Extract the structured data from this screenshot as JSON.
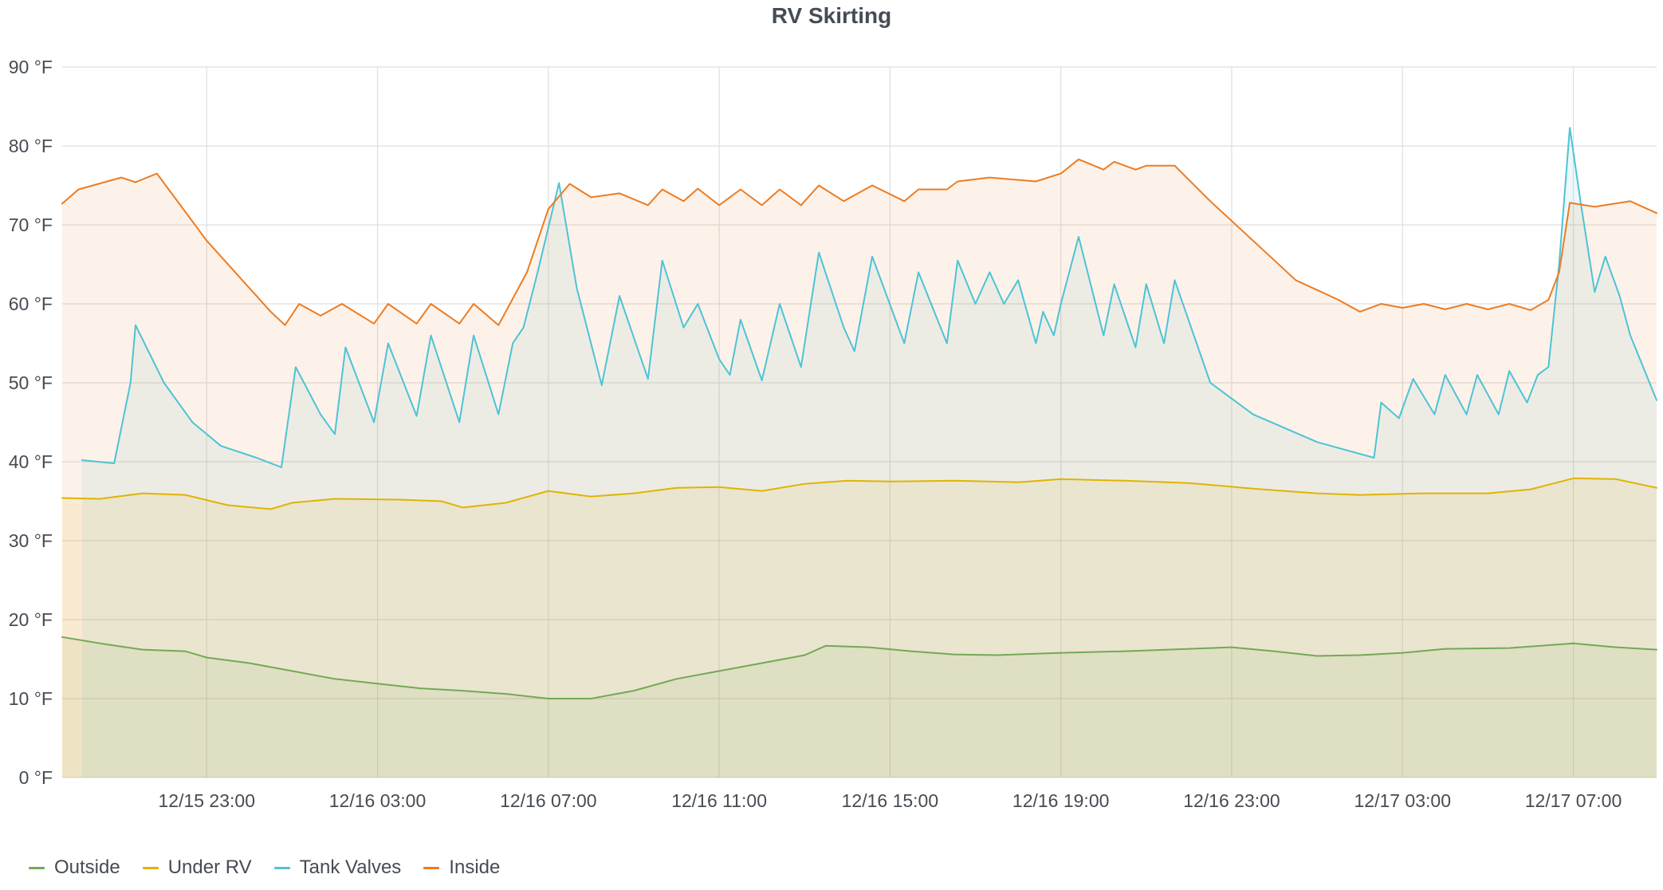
{
  "chart_data": {
    "type": "area",
    "title": "RV Skirting",
    "xlabel": "",
    "ylabel": "",
    "xlim": [
      "12/15 19:37",
      "12/17 08:57"
    ],
    "ylim": [
      0,
      90
    ],
    "y_unit": "°F",
    "yticks": [
      0,
      10,
      20,
      30,
      40,
      50,
      60,
      70,
      80,
      90
    ],
    "ytick_labels": [
      "0 °F",
      "10 °F",
      "20 °F",
      "30 °F",
      "40 °F",
      "50 °F",
      "60 °F",
      "70 °F",
      "80 °F",
      "90 °F"
    ],
    "xticks": [
      "12/15 23:00",
      "12/16 03:00",
      "12/16 07:00",
      "12/16 11:00",
      "12/16 15:00",
      "12/16 19:00",
      "12/16 23:00",
      "12/17 03:00",
      "12/17 07:00"
    ],
    "grid": true,
    "legend_position": "bottom-left",
    "series": [
      {
        "name": "Outside",
        "color": "#73a955",
        "points": [
          [
            "12/15 19:37",
            17.8
          ],
          [
            "12/15 20:30",
            17.0
          ],
          [
            "12/15 21:30",
            16.2
          ],
          [
            "12/15 22:30",
            16.0
          ],
          [
            "12/15 23:00",
            15.2
          ],
          [
            "12/16 00:00",
            14.5
          ],
          [
            "12/16 01:00",
            13.5
          ],
          [
            "12/16 02:00",
            12.5
          ],
          [
            "12/16 03:00",
            11.9
          ],
          [
            "12/16 04:00",
            11.3
          ],
          [
            "12/16 05:00",
            11.0
          ],
          [
            "12/16 06:00",
            10.6
          ],
          [
            "12/16 07:00",
            10.0
          ],
          [
            "12/16 08:00",
            10.0
          ],
          [
            "12/16 09:00",
            11.0
          ],
          [
            "12/16 10:00",
            12.5
          ],
          [
            "12/16 11:00",
            13.5
          ],
          [
            "12/16 12:00",
            14.5
          ],
          [
            "12/16 13:00",
            15.5
          ],
          [
            "12/16 13:30",
            16.7
          ],
          [
            "12/16 14:30",
            16.5
          ],
          [
            "12/16 15:30",
            16.0
          ],
          [
            "12/16 16:30",
            15.6
          ],
          [
            "12/16 17:30",
            15.5
          ],
          [
            "12/16 19:00",
            15.8
          ],
          [
            "12/16 20:30",
            16.0
          ],
          [
            "12/16 22:00",
            16.3
          ],
          [
            "12/16 23:00",
            16.5
          ],
          [
            "12/17 00:00",
            16.0
          ],
          [
            "12/17 01:00",
            15.4
          ],
          [
            "12/17 02:00",
            15.5
          ],
          [
            "12/17 03:00",
            15.8
          ],
          [
            "12/17 04:00",
            16.3
          ],
          [
            "12/17 05:30",
            16.4
          ],
          [
            "12/17 07:00",
            17.0
          ],
          [
            "12/17 08:00",
            16.5
          ],
          [
            "12/17 08:57",
            16.2
          ]
        ]
      },
      {
        "name": "Under RV",
        "color": "#e0b400",
        "points": [
          [
            "12/15 19:37",
            35.4
          ],
          [
            "12/15 20:30",
            35.3
          ],
          [
            "12/15 21:30",
            36.0
          ],
          [
            "12/15 22:30",
            35.8
          ],
          [
            "12/15 23:30",
            34.5
          ],
          [
            "12/16 00:30",
            34.0
          ],
          [
            "12/16 01:00",
            34.8
          ],
          [
            "12/16 02:00",
            35.3
          ],
          [
            "12/16 03:30",
            35.2
          ],
          [
            "12/16 04:30",
            35.0
          ],
          [
            "12/16 05:00",
            34.2
          ],
          [
            "12/16 06:00",
            34.8
          ],
          [
            "12/16 07:00",
            36.3
          ],
          [
            "12/16 08:00",
            35.6
          ],
          [
            "12/16 09:00",
            36.0
          ],
          [
            "12/16 10:00",
            36.7
          ],
          [
            "12/16 11:00",
            36.8
          ],
          [
            "12/16 12:00",
            36.3
          ],
          [
            "12/16 13:00",
            37.2
          ],
          [
            "12/16 14:00",
            37.6
          ],
          [
            "12/16 15:00",
            37.5
          ],
          [
            "12/16 16:30",
            37.6
          ],
          [
            "12/16 18:00",
            37.4
          ],
          [
            "12/16 19:00",
            37.8
          ],
          [
            "12/16 20:30",
            37.6
          ],
          [
            "12/16 22:00",
            37.3
          ],
          [
            "12/16 23:30",
            36.6
          ],
          [
            "12/17 01:00",
            36.0
          ],
          [
            "12/17 02:00",
            35.8
          ],
          [
            "12/17 03:30",
            36.0
          ],
          [
            "12/17 05:00",
            36.0
          ],
          [
            "12/17 06:00",
            36.5
          ],
          [
            "12/17 07:00",
            37.9
          ],
          [
            "12/17 08:00",
            37.8
          ],
          [
            "12/17 08:57",
            36.7
          ]
        ]
      },
      {
        "name": "Tank Valves",
        "color": "#4dc3d6",
        "points": [
          [
            "12/15 20:05",
            40.2
          ],
          [
            "12/15 20:50",
            39.8
          ],
          [
            "12/15 21:13",
            50.0
          ],
          [
            "12/15 21:20",
            57.3
          ],
          [
            "12/15 22:00",
            50.0
          ],
          [
            "12/15 22:40",
            45.0
          ],
          [
            "12/15 23:20",
            42.0
          ],
          [
            "12/16 00:10",
            40.5
          ],
          [
            "12/16 00:45",
            39.3
          ],
          [
            "12/16 01:05",
            52.0
          ],
          [
            "12/16 01:40",
            46.0
          ],
          [
            "12/16 02:00",
            43.5
          ],
          [
            "12/16 02:15",
            54.5
          ],
          [
            "12/16 02:55",
            45.0
          ],
          [
            "12/16 03:15",
            55.0
          ],
          [
            "12/16 03:55",
            45.8
          ],
          [
            "12/16 04:15",
            56.0
          ],
          [
            "12/16 04:55",
            45.0
          ],
          [
            "12/16 05:15",
            56.0
          ],
          [
            "12/16 05:50",
            46.0
          ],
          [
            "12/16 06:10",
            55.0
          ],
          [
            "12/16 06:25",
            57.0
          ],
          [
            "12/16 06:45",
            64.0
          ],
          [
            "12/16 07:15",
            75.3
          ],
          [
            "12/16 07:40",
            62.0
          ],
          [
            "12/16 08:15",
            49.7
          ],
          [
            "12/16 08:40",
            61.0
          ],
          [
            "12/16 09:20",
            50.5
          ],
          [
            "12/16 09:40",
            65.5
          ],
          [
            "12/16 10:10",
            57.0
          ],
          [
            "12/16 10:30",
            60.0
          ],
          [
            "12/16 11:00",
            53.0
          ],
          [
            "12/16 11:15",
            51.0
          ],
          [
            "12/16 11:30",
            58.0
          ],
          [
            "12/16 12:00",
            50.3
          ],
          [
            "12/16 12:25",
            60.0
          ],
          [
            "12/16 12:55",
            52.0
          ],
          [
            "12/16 13:20",
            66.5
          ],
          [
            "12/16 13:55",
            57.0
          ],
          [
            "12/16 14:10",
            54.0
          ],
          [
            "12/16 14:35",
            66.0
          ],
          [
            "12/16 15:20",
            55.0
          ],
          [
            "12/16 15:40",
            64.0
          ],
          [
            "12/16 16:20",
            55.0
          ],
          [
            "12/16 16:35",
            65.5
          ],
          [
            "12/16 17:00",
            60.0
          ],
          [
            "12/16 17:20",
            64.0
          ],
          [
            "12/16 17:40",
            60.0
          ],
          [
            "12/16 18:00",
            63.0
          ],
          [
            "12/16 18:25",
            55.0
          ],
          [
            "12/16 18:35",
            59.0
          ],
          [
            "12/16 18:50",
            56.0
          ],
          [
            "12/16 19:00",
            60.0
          ],
          [
            "12/16 19:25",
            68.5
          ],
          [
            "12/16 20:00",
            56.0
          ],
          [
            "12/16 20:15",
            62.5
          ],
          [
            "12/16 20:45",
            54.5
          ],
          [
            "12/16 21:00",
            62.5
          ],
          [
            "12/16 21:25",
            55.0
          ],
          [
            "12/16 21:40",
            63.0
          ],
          [
            "12/16 22:30",
            50.0
          ],
          [
            "12/16 23:30",
            46.0
          ],
          [
            "12/17 01:00",
            42.5
          ],
          [
            "12/17 02:00",
            41.0
          ],
          [
            "12/17 02:20",
            40.5
          ],
          [
            "12/17 02:30",
            47.5
          ],
          [
            "12/17 02:55",
            45.5
          ],
          [
            "12/17 03:15",
            50.5
          ],
          [
            "12/17 03:45",
            46.0
          ],
          [
            "12/17 04:00",
            51.0
          ],
          [
            "12/17 04:30",
            46.0
          ],
          [
            "12/17 04:45",
            51.0
          ],
          [
            "12/17 05:15",
            46.0
          ],
          [
            "12/17 05:30",
            51.5
          ],
          [
            "12/17 05:55",
            47.5
          ],
          [
            "12/17 06:10",
            51.0
          ],
          [
            "12/17 06:25",
            52.0
          ],
          [
            "12/17 06:40",
            65.0
          ],
          [
            "12/17 06:55",
            82.3
          ],
          [
            "12/17 07:10",
            73.0
          ],
          [
            "12/17 07:30",
            61.5
          ],
          [
            "12/17 07:45",
            66.0
          ],
          [
            "12/17 08:05",
            61.0
          ],
          [
            "12/17 08:20",
            56.0
          ],
          [
            "12/17 08:57",
            47.8
          ]
        ]
      },
      {
        "name": "Inside",
        "color": "#ec7c24",
        "points": [
          [
            "12/15 19:37",
            72.7
          ],
          [
            "12/15 20:00",
            74.5
          ],
          [
            "12/15 21:00",
            76.0
          ],
          [
            "12/15 21:20",
            75.4
          ],
          [
            "12/15 21:50",
            76.5
          ],
          [
            "12/15 23:00",
            68.0
          ],
          [
            "12/16 00:30",
            59.0
          ],
          [
            "12/16 00:50",
            57.3
          ],
          [
            "12/16 01:10",
            60.0
          ],
          [
            "12/16 01:40",
            58.5
          ],
          [
            "12/16 02:10",
            60.0
          ],
          [
            "12/16 02:55",
            57.5
          ],
          [
            "12/16 03:15",
            60.0
          ],
          [
            "12/16 03:55",
            57.5
          ],
          [
            "12/16 04:15",
            60.0
          ],
          [
            "12/16 04:55",
            57.5
          ],
          [
            "12/16 05:15",
            60.0
          ],
          [
            "12/16 05:50",
            57.3
          ],
          [
            "12/16 06:30",
            64.0
          ],
          [
            "12/16 07:00",
            72.0
          ],
          [
            "12/16 07:30",
            75.2
          ],
          [
            "12/16 08:00",
            73.5
          ],
          [
            "12/16 08:40",
            74.0
          ],
          [
            "12/16 09:20",
            72.5
          ],
          [
            "12/16 09:40",
            74.5
          ],
          [
            "12/16 10:10",
            73.0
          ],
          [
            "12/16 10:30",
            74.6
          ],
          [
            "12/16 11:00",
            72.5
          ],
          [
            "12/16 11:30",
            74.5
          ],
          [
            "12/16 12:00",
            72.5
          ],
          [
            "12/16 12:25",
            74.5
          ],
          [
            "12/16 12:55",
            72.5
          ],
          [
            "12/16 13:20",
            75.0
          ],
          [
            "12/16 13:55",
            73.0
          ],
          [
            "12/16 14:35",
            75.0
          ],
          [
            "12/16 15:20",
            73.0
          ],
          [
            "12/16 15:40",
            74.5
          ],
          [
            "12/16 16:20",
            74.5
          ],
          [
            "12/16 16:35",
            75.5
          ],
          [
            "12/16 17:20",
            76.0
          ],
          [
            "12/16 18:25",
            75.5
          ],
          [
            "12/16 19:00",
            76.5
          ],
          [
            "12/16 19:25",
            78.3
          ],
          [
            "12/16 20:00",
            77.0
          ],
          [
            "12/16 20:15",
            78.0
          ],
          [
            "12/16 20:45",
            77.0
          ],
          [
            "12/16 21:00",
            77.5
          ],
          [
            "12/16 21:40",
            77.5
          ],
          [
            "12/16 22:30",
            73.0
          ],
          [
            "12/16 23:30",
            68.0
          ],
          [
            "12/17 00:30",
            63.0
          ],
          [
            "12/17 01:30",
            60.5
          ],
          [
            "12/17 02:00",
            59.0
          ],
          [
            "12/17 02:30",
            60.0
          ],
          [
            "12/17 03:00",
            59.5
          ],
          [
            "12/17 03:30",
            60.0
          ],
          [
            "12/17 04:00",
            59.3
          ],
          [
            "12/17 04:30",
            60.0
          ],
          [
            "12/17 05:00",
            59.3
          ],
          [
            "12/17 05:30",
            60.0
          ],
          [
            "12/17 06:00",
            59.2
          ],
          [
            "12/17 06:25",
            60.5
          ],
          [
            "12/17 06:40",
            64.0
          ],
          [
            "12/17 06:55",
            72.8
          ],
          [
            "12/17 07:30",
            72.3
          ],
          [
            "12/17 08:20",
            73.0
          ],
          [
            "12/17 08:57",
            71.5
          ]
        ]
      }
    ]
  }
}
